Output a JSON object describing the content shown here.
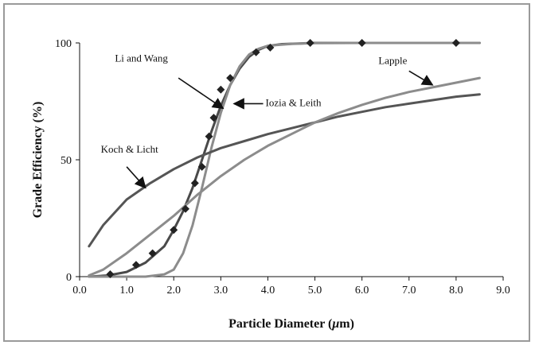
{
  "chart_data": {
    "type": "line",
    "title": "",
    "xlabel": "Particle Diameter (",
    "xlabel_unit": "μ",
    "xlabel_suffix": "m)",
    "ylabel": "Grade Efficiency (%)",
    "xlim": [
      0.0,
      9.0
    ],
    "ylim": [
      0,
      100
    ],
    "x_ticks": [
      "0.0",
      "1.0",
      "2.0",
      "3.0",
      "4.0",
      "5.0",
      "6.0",
      "7.0",
      "8.0",
      "9.0"
    ],
    "y_ticks": [
      "0",
      "50",
      "100"
    ],
    "grid": false,
    "legend": "none (curves labeled with arrows)",
    "series": [
      {
        "name": "Li and Wang",
        "kind": "line",
        "color": "#4a4a4a",
        "points": [
          [
            0.2,
            0
          ],
          [
            0.6,
            0.5
          ],
          [
            1.0,
            2
          ],
          [
            1.4,
            6
          ],
          [
            1.8,
            13
          ],
          [
            2.0,
            20
          ],
          [
            2.2,
            28
          ],
          [
            2.4,
            38
          ],
          [
            2.6,
            50
          ],
          [
            2.8,
            62
          ],
          [
            3.0,
            73
          ],
          [
            3.2,
            82
          ],
          [
            3.4,
            89
          ],
          [
            3.6,
            94
          ],
          [
            3.8,
            97
          ],
          [
            4.0,
            98.7
          ],
          [
            4.3,
            99.5
          ],
          [
            5.0,
            100
          ],
          [
            6.0,
            100
          ],
          [
            7.0,
            100
          ],
          [
            8.0,
            100
          ],
          [
            8.5,
            100
          ]
        ]
      },
      {
        "name": "Iozia & Leith",
        "kind": "line",
        "color": "#8c8c8c",
        "points": [
          [
            0.2,
            0
          ],
          [
            1.0,
            0
          ],
          [
            1.4,
            0
          ],
          [
            1.8,
            1
          ],
          [
            2.0,
            3
          ],
          [
            2.2,
            10
          ],
          [
            2.4,
            22
          ],
          [
            2.6,
            38
          ],
          [
            2.8,
            55
          ],
          [
            3.0,
            70
          ],
          [
            3.2,
            82
          ],
          [
            3.4,
            90
          ],
          [
            3.6,
            95
          ],
          [
            3.8,
            97.5
          ],
          [
            4.0,
            98.8
          ],
          [
            4.5,
            99.6
          ],
          [
            5.0,
            99.9
          ],
          [
            6.0,
            100
          ],
          [
            7.0,
            100
          ],
          [
            8.0,
            100
          ],
          [
            8.5,
            100
          ]
        ]
      },
      {
        "name": "Koch & Licht",
        "kind": "line",
        "color": "#555555",
        "points": [
          [
            0.2,
            13
          ],
          [
            0.5,
            22
          ],
          [
            1.0,
            33
          ],
          [
            1.5,
            40
          ],
          [
            2.0,
            46
          ],
          [
            2.5,
            51
          ],
          [
            3.0,
            55
          ],
          [
            3.5,
            58
          ],
          [
            4.0,
            61
          ],
          [
            4.5,
            63.5
          ],
          [
            5.0,
            66
          ],
          [
            5.5,
            68.5
          ],
          [
            6.0,
            70.5
          ],
          [
            6.5,
            72.5
          ],
          [
            7.0,
            74
          ],
          [
            7.5,
            75.5
          ],
          [
            8.0,
            77
          ],
          [
            8.5,
            78
          ]
        ]
      },
      {
        "name": "Lapple",
        "kind": "line",
        "color": "#8c8c8c",
        "points": [
          [
            0.2,
            0.5
          ],
          [
            0.5,
            3
          ],
          [
            1.0,
            10
          ],
          [
            1.5,
            18
          ],
          [
            2.0,
            26
          ],
          [
            2.5,
            35
          ],
          [
            3.0,
            43
          ],
          [
            3.5,
            50
          ],
          [
            4.0,
            56
          ],
          [
            4.5,
            61
          ],
          [
            5.0,
            66
          ],
          [
            5.5,
            70
          ],
          [
            6.0,
            73.5
          ],
          [
            6.5,
            76.5
          ],
          [
            7.0,
            79
          ],
          [
            7.5,
            81
          ],
          [
            8.0,
            83
          ],
          [
            8.5,
            85
          ]
        ]
      },
      {
        "kind": "scatter",
        "color": "#222222",
        "points": [
          [
            0.65,
            1
          ],
          [
            1.2,
            5
          ],
          [
            1.55,
            10
          ],
          [
            2.0,
            20
          ],
          [
            2.25,
            29
          ],
          [
            2.45,
            40
          ],
          [
            2.6,
            47
          ],
          [
            2.75,
            60
          ],
          [
            2.85,
            68
          ],
          [
            3.0,
            80
          ],
          [
            3.2,
            85
          ],
          [
            3.75,
            96
          ],
          [
            4.05,
            98
          ],
          [
            4.9,
            100
          ],
          [
            6.0,
            100
          ],
          [
            8.0,
            100
          ]
        ]
      }
    ],
    "annotations": [
      {
        "text": "Li and Wang",
        "at": [
          0.75,
          92
        ],
        "arrow_from": [
          2.1,
          85
        ],
        "arrow_to": [
          3.05,
          72
        ]
      },
      {
        "text": "Iozia & Leith",
        "at": [
          3.95,
          73
        ],
        "arrow_from": [
          3.9,
          74
        ],
        "arrow_to": [
          3.28,
          74
        ]
      },
      {
        "text": "Koch & Licht",
        "at": [
          0.45,
          53
        ],
        "arrow_from": [
          1.0,
          47
        ],
        "arrow_to": [
          1.4,
          38
        ]
      },
      {
        "text": "Lapple",
        "at": [
          6.35,
          91
        ],
        "arrow_from": [
          7.0,
          88
        ],
        "arrow_to": [
          7.5,
          82
        ]
      }
    ]
  }
}
